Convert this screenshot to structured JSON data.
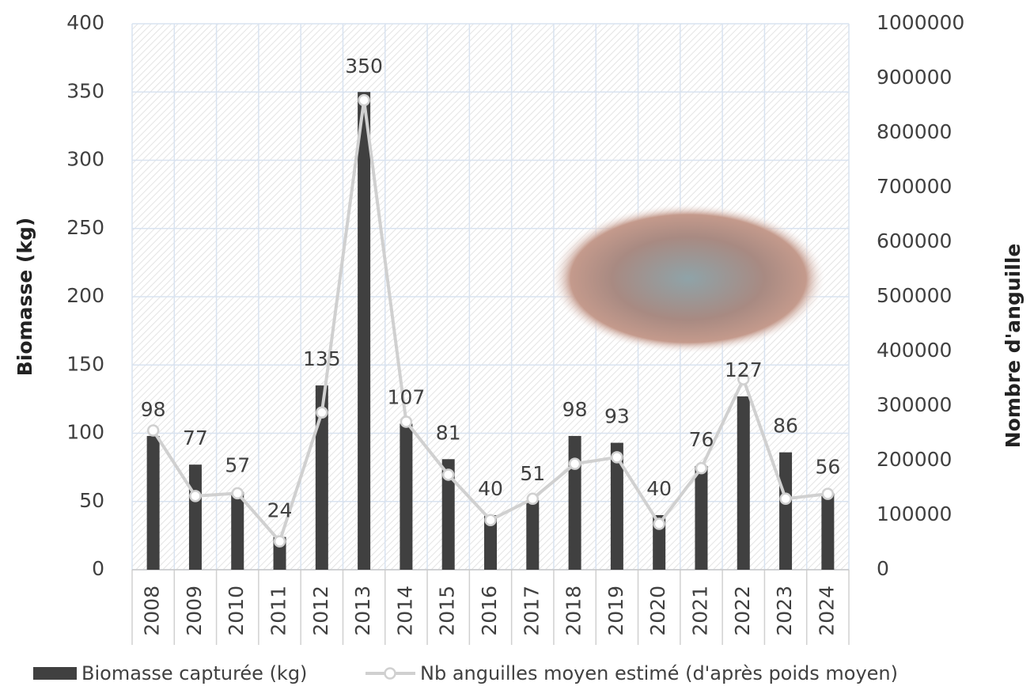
{
  "chart_data": {
    "type": "bar",
    "categories": [
      "2008",
      "2009",
      "2010",
      "2011",
      "2012",
      "2013",
      "2014",
      "2015",
      "2016",
      "2017",
      "2018",
      "2019",
      "2020",
      "2021",
      "2022",
      "2023",
      "2024"
    ],
    "series": [
      {
        "name": "Biomasse capturée (kg)",
        "type": "bar",
        "color": "#404040",
        "values": [
          98,
          77,
          57,
          24,
          135,
          350,
          107,
          81,
          40,
          51,
          98,
          93,
          40,
          76,
          127,
          86,
          56
        ]
      },
      {
        "name": "Nb anguilles moyen estimé (d'après poids moyen)",
        "type": "line",
        "axis": "y2",
        "color": "#d0d0d0",
        "values": [
          255000,
          135000,
          140000,
          52000,
          288000,
          860000,
          271000,
          174000,
          91000,
          130000,
          194000,
          206000,
          84000,
          186000,
          349000,
          130000,
          139000
        ]
      }
    ],
    "ylabel": "Biomasse (kg)",
    "y2label": "Nombre d'anguille",
    "ylim": [
      0,
      400
    ],
    "yticks": [
      0,
      50,
      100,
      150,
      200,
      250,
      300,
      350,
      400
    ],
    "y2lim": [
      0,
      1000000
    ],
    "y2ticks": [
      0,
      100000,
      200000,
      300000,
      400000,
      500000,
      600000,
      700000,
      800000,
      900000,
      1000000
    ],
    "grid": true,
    "legend": "bottom"
  }
}
